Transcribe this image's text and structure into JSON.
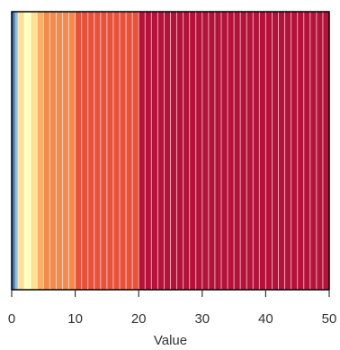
{
  "chart_data": {
    "type": "heatmap",
    "title": "",
    "xlabel": "Value",
    "ylabel": "",
    "xlim": [
      0,
      50
    ],
    "x_ticks": [
      "0",
      "10",
      "20",
      "30",
      "40",
      "50"
    ],
    "x_tick_values": [
      0,
      10,
      20,
      30,
      40,
      50
    ],
    "grid": false,
    "legend": "none",
    "stripe_step": 1,
    "stripe_line_color": "#ffffff",
    "color_bands": [
      {
        "from": 0,
        "to": 0.5,
        "color": "#4575b4"
      },
      {
        "from": 0.5,
        "to": 1,
        "color": "#91bfdb"
      },
      {
        "from": 1,
        "to": 2,
        "color": "#fee090"
      },
      {
        "from": 2,
        "to": 3,
        "color": "#ffffbf"
      },
      {
        "from": 3,
        "to": 4,
        "color": "#fee090"
      },
      {
        "from": 4,
        "to": 5,
        "color": "#fdae61"
      },
      {
        "from": 5,
        "to": 10,
        "color": "#f48a4c"
      },
      {
        "from": 10,
        "to": 20,
        "color": "#e8513a"
      },
      {
        "from": 20,
        "to": 50,
        "color": "#b5123a"
      }
    ]
  }
}
